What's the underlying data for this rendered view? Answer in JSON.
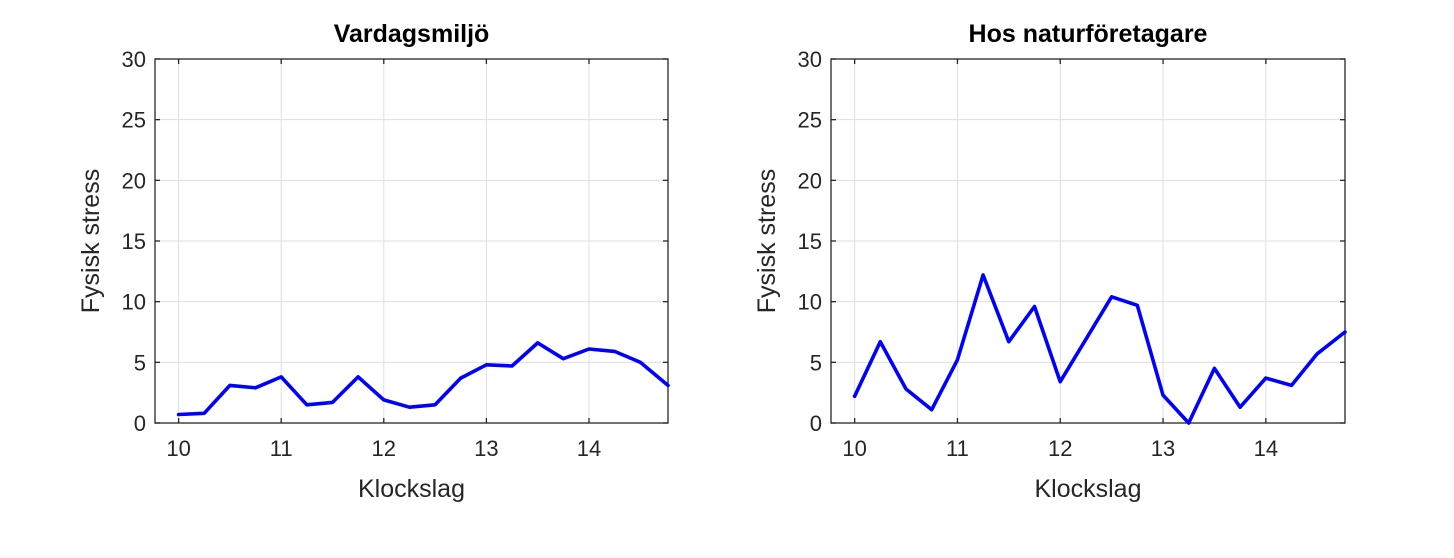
{
  "chart_data": [
    {
      "type": "line",
      "title": "Vardagsmiljö",
      "xlabel": "Klockslag",
      "ylabel": "Fysisk stress",
      "xlim": [
        9.77,
        14.77
      ],
      "ylim": [
        0,
        30
      ],
      "xticks": [
        10,
        11,
        12,
        13,
        14
      ],
      "yticks": [
        0,
        5,
        10,
        15,
        20,
        25,
        30
      ],
      "grid": true,
      "series": [
        {
          "color": "#0000ff",
          "x": [
            10,
            10.25,
            10.5,
            10.75,
            11,
            11.25,
            11.5,
            11.75,
            12,
            12.25,
            12.5,
            12.75,
            13,
            13.25,
            13.5,
            13.75,
            14,
            14.25,
            14.5,
            14.77
          ],
          "y": [
            0.7,
            0.8,
            3.1,
            2.9,
            3.8,
            1.5,
            1.7,
            3.8,
            1.9,
            1.3,
            1.5,
            3.7,
            4.8,
            4.7,
            6.6,
            5.3,
            6.1,
            5.9,
            5.0,
            3.1
          ]
        }
      ]
    },
    {
      "type": "line",
      "title": "Hos naturföretagare",
      "xlabel": "Klockslag",
      "ylabel": "Fysisk stress",
      "xlim": [
        9.77,
        14.77
      ],
      "ylim": [
        0,
        30
      ],
      "xticks": [
        10,
        11,
        12,
        13,
        14
      ],
      "yticks": [
        0,
        5,
        10,
        15,
        20,
        25,
        30
      ],
      "grid": true,
      "series": [
        {
          "color": "#0000ff",
          "x": [
            10,
            10.25,
            10.5,
            10.75,
            11,
            11.25,
            11.5,
            11.75,
            12,
            12.25,
            12.5,
            12.75,
            13,
            13.25,
            13.5,
            13.75,
            14,
            14.25,
            14.5,
            14.77
          ],
          "y": [
            2.2,
            6.7,
            2.8,
            1.1,
            5.2,
            12.2,
            6.7,
            9.6,
            3.4,
            6.9,
            10.4,
            9.7,
            2.3,
            0.0,
            4.5,
            1.3,
            3.7,
            3.1,
            5.7,
            7.5
          ]
        }
      ]
    }
  ]
}
